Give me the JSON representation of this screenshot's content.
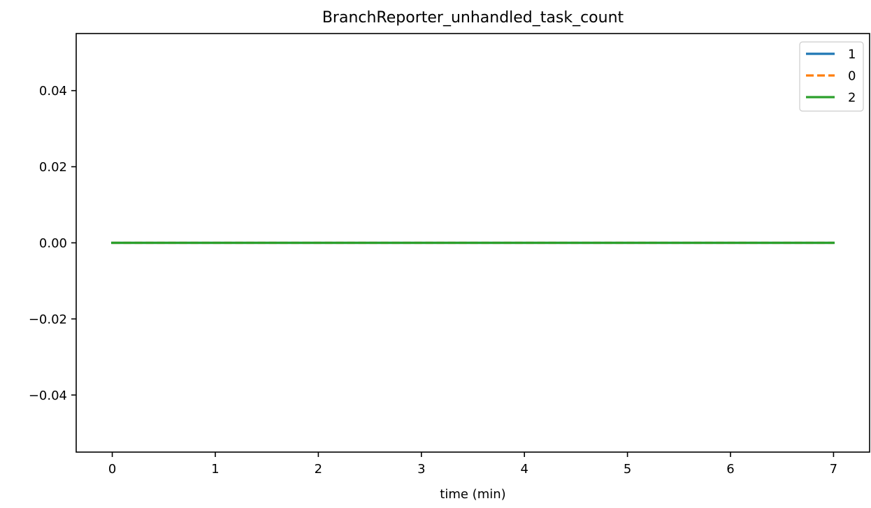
{
  "chart_data": {
    "type": "line",
    "title": "BranchReporter_unhandled_task_count",
    "xlabel": "time (min)",
    "ylabel": "",
    "xlim": [
      -0.35,
      7.35
    ],
    "ylim": [
      -0.055,
      0.055
    ],
    "x_ticks": [
      0,
      1,
      2,
      3,
      4,
      5,
      6,
      7
    ],
    "x_tick_labels": [
      "0",
      "1",
      "2",
      "3",
      "4",
      "5",
      "6",
      "7"
    ],
    "y_ticks": [
      -0.04,
      -0.02,
      0.0,
      0.02,
      0.04
    ],
    "y_tick_labels": [
      "−0.04",
      "−0.02",
      "0.00",
      "0.02",
      "0.04"
    ],
    "grid": false,
    "legend_position": "top-right",
    "x": [
      0,
      1,
      2,
      3,
      4,
      5,
      6,
      7
    ],
    "series": [
      {
        "name": "1",
        "color": "#1f77b4",
        "style": "solid",
        "values": [
          0,
          0,
          0,
          0,
          0,
          0,
          0,
          0
        ]
      },
      {
        "name": "0",
        "color": "#ff7f0e",
        "style": "dashed",
        "values": [
          0,
          0,
          0,
          0,
          0,
          0,
          0,
          0
        ]
      },
      {
        "name": "2",
        "color": "#2ca02c",
        "style": "solid",
        "values": [
          0,
          0,
          0,
          0,
          0,
          0,
          0,
          0
        ]
      }
    ]
  }
}
